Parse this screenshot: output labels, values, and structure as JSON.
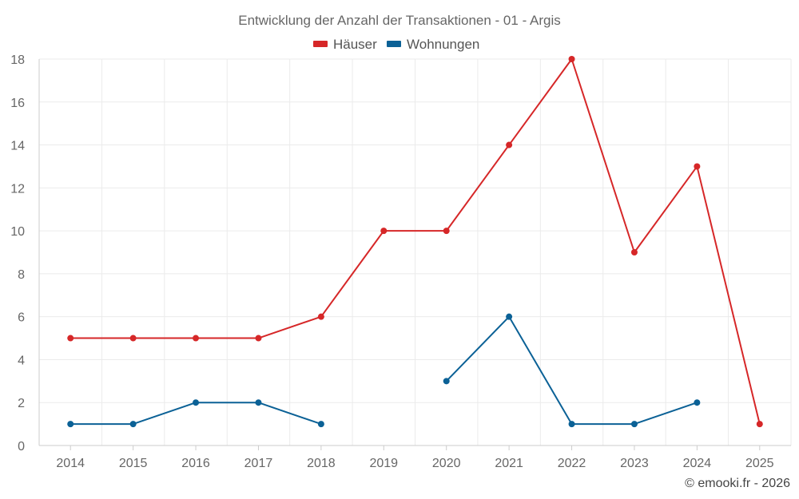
{
  "chart_data": {
    "type": "line",
    "title": "Entwicklung der Anzahl der Transaktionen - 01 - Argis",
    "categories": [
      "2014",
      "2015",
      "2016",
      "2017",
      "2018",
      "2019",
      "2020",
      "2021",
      "2022",
      "2023",
      "2024",
      "2025"
    ],
    "series": [
      {
        "name": "Häuser",
        "color": "#d62728",
        "values": [
          5,
          5,
          5,
          5,
          6,
          10,
          10,
          14,
          18,
          9,
          13,
          1
        ]
      },
      {
        "name": "Wohnungen",
        "color": "#0b6196",
        "values": [
          1,
          1,
          2,
          2,
          1,
          null,
          3,
          6,
          1,
          1,
          2,
          null
        ]
      }
    ],
    "ylim": [
      0,
      18
    ],
    "yticks": [
      0,
      2,
      4,
      6,
      8,
      10,
      12,
      14,
      16,
      18
    ],
    "xlabel": "",
    "ylabel": "",
    "grid": true,
    "legend_position": "top-center"
  },
  "footer": {
    "credit": "© emooki.fr - 2026"
  }
}
